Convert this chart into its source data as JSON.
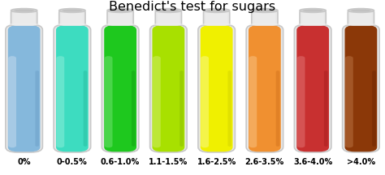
{
  "title": "Benedict's test for sugars",
  "title_fontsize": 11.5,
  "background_color": "#ffffff",
  "tubes": [
    {
      "label": "0%",
      "color": "#85B8DC",
      "highlight": "#C2D9EE",
      "dark": "#5A8FB8"
    },
    {
      "label": "0-0.5%",
      "color": "#3DDCC0",
      "highlight": "#88EDD8",
      "dark": "#1BA88A"
    },
    {
      "label": "0.6-1.0%",
      "color": "#1EC81E",
      "highlight": "#6EE06E",
      "dark": "#0A8A0A"
    },
    {
      "label": "1.1-1.5%",
      "color": "#A8E000",
      "highlight": "#D0EE66",
      "dark": "#78A800"
    },
    {
      "label": "1.6-2.5%",
      "color": "#F0F000",
      "highlight": "#F8F888",
      "dark": "#C0C000"
    },
    {
      "label": "2.6-3.5%",
      "color": "#F09030",
      "highlight": "#F8C080",
      "dark": "#C06010"
    },
    {
      "label": "3.6-4.0%",
      "color": "#C83030",
      "highlight": "#E07070",
      "dark": "#901010"
    },
    {
      "label": ">4.0%",
      "color": "#8B3808",
      "highlight": "#B87040",
      "dark": "#5A1C00"
    }
  ],
  "label_fontsize": 7,
  "label_fontweight": "bold"
}
